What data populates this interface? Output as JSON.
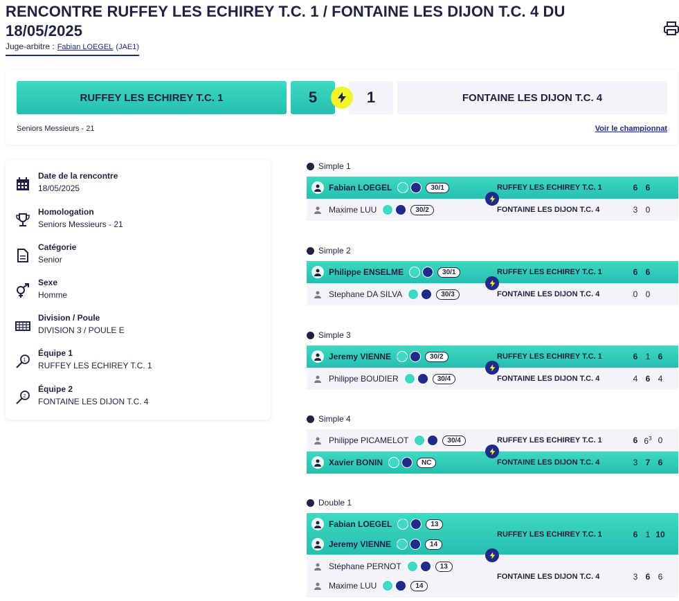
{
  "header": {
    "title": "RENCONTRE RUFFEY LES ECHIREY T.C. 1 / FONTAINE LES DIJON T.C. 4 DU 18/05/2025",
    "judge_label": "Juge-arbitre :",
    "judge_name": "Fabian LOEGEL",
    "judge_rank": "(JAE1)",
    "print_icon": "printer-icon"
  },
  "scorecard": {
    "team_a": "RUFFEY LES ECHIREY T.C. 1",
    "score_a": "5",
    "score_b": "1",
    "team_b": "FONTAINE LES DIJON T.C. 4",
    "category": "Seniors Messieurs - 21",
    "link": "Voir le championnat",
    "accent": "#3dd9c3",
    "bolt_color": "#f0f52a"
  },
  "info": [
    {
      "icon": "calendar-icon",
      "label": "Date de la rencontre",
      "value": "18/05/2025"
    },
    {
      "icon": "trophy-icon",
      "label": "Homologation",
      "value": "Seniors Messieurs - 21"
    },
    {
      "icon": "document-icon",
      "label": "Catégorie",
      "value": "Senior"
    },
    {
      "icon": "gender-icon",
      "label": "Sexe",
      "value": "Homme"
    },
    {
      "icon": "grid-icon",
      "label": "Division / Poule",
      "value": "DIVISION 3 / POULE E"
    },
    {
      "icon": "racket-1-icon",
      "label": "Équipe 1",
      "value": "RUFFEY LES ECHIREY T.C. 1"
    },
    {
      "icon": "racket-2-icon",
      "label": "Équipe 2",
      "value": "FONTAINE LES DIJON T.C. 4"
    }
  ],
  "matches": [
    {
      "title": "Simple 1",
      "p1": {
        "name": "Fabian LOEGEL",
        "rank": "30/1",
        "team": "RUFFEY LES ECHIREY T.C. 1",
        "sets": [
          "6",
          "6"
        ],
        "win": true
      },
      "p2": {
        "name": "Maxime LUU",
        "rank": "30/2",
        "team": "FONTAINE LES DIJON T.C. 4",
        "sets": [
          "3",
          "0"
        ],
        "win": false
      }
    },
    {
      "title": "Simple 2",
      "p1": {
        "name": "Philippe ENSELME",
        "rank": "30/1",
        "team": "RUFFEY LES ECHIREY T.C. 1",
        "sets": [
          "6",
          "6"
        ],
        "win": true
      },
      "p2": {
        "name": "Stephane DA SILVA",
        "rank": "30/3",
        "team": "FONTAINE LES DIJON T.C. 4",
        "sets": [
          "0",
          "0"
        ],
        "win": false
      }
    },
    {
      "title": "Simple 3",
      "p1": {
        "name": "Jeremy VIENNE",
        "rank": "30/2",
        "team": "RUFFEY LES ECHIREY T.C. 1",
        "sets": [
          "6",
          "1",
          "6"
        ],
        "win": true
      },
      "p2": {
        "name": "Philippe BOUDIER",
        "rank": "30/4",
        "team": "FONTAINE LES DIJON T.C. 4",
        "sets": [
          "4",
          "6",
          "4"
        ],
        "win": false
      }
    },
    {
      "title": "Simple 4",
      "p1": {
        "name": "Philippe PICAMELOT",
        "rank": "30/4",
        "team": "RUFFEY LES ECHIREY T.C. 1",
        "sets": [
          "6",
          "6",
          "0"
        ],
        "tb": "3",
        "win": false
      },
      "p2": {
        "name": "Xavier BONIN",
        "rank": "NC",
        "team": "FONTAINE LES DIJON T.C. 4",
        "sets": [
          "3",
          "7",
          "6"
        ],
        "win": true
      }
    }
  ],
  "double": {
    "title": "Double 1",
    "team1": {
      "players": [
        {
          "name": "Fabian LOEGEL",
          "rank": "13"
        },
        {
          "name": "Jeremy VIENNE",
          "rank": "14"
        }
      ],
      "team": "RUFFEY LES ECHIREY T.C. 1",
      "sets": [
        "6",
        "1",
        "10"
      ]
    },
    "team2": {
      "players": [
        {
          "name": "Stéphane PERNOT",
          "rank": "13"
        },
        {
          "name": "Maxime LUU",
          "rank": "14"
        }
      ],
      "team": "FONTAINE LES DIJON T.C. 4",
      "sets": [
        "3",
        "6",
        "6"
      ]
    }
  }
}
